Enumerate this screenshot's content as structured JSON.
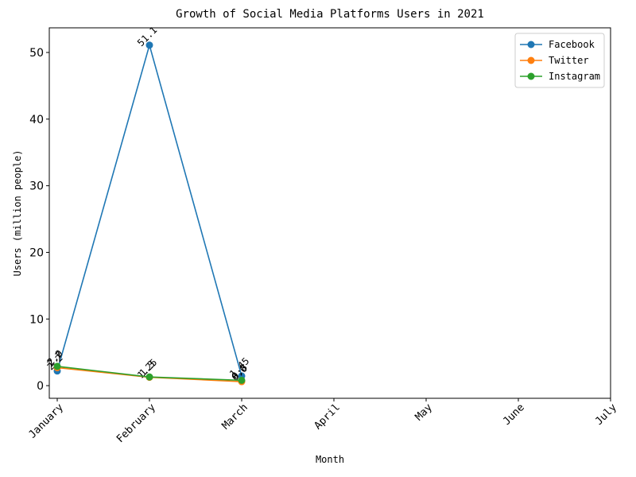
{
  "chart_data": {
    "type": "line",
    "title": "Growth of Social Media Platforms Users in 2021",
    "xlabel": "Month",
    "ylabel": "Users (million people)",
    "categories": [
      "January",
      "February",
      "March",
      "April",
      "May",
      "June",
      "July"
    ],
    "series": [
      {
        "name": "Facebook",
        "color": "#1f77b4",
        "values": [
          2.2,
          51.1,
          1.45,
          null,
          null,
          null,
          null
        ]
      },
      {
        "name": "Twitter",
        "color": "#ff7f0e",
        "values": [
          2.7,
          1.25,
          0.6,
          null,
          null,
          null,
          null
        ]
      },
      {
        "name": "Instagram",
        "color": "#2ca02c",
        "values": [
          2.9,
          1.3,
          0.8,
          null,
          null,
          null,
          null
        ]
      }
    ],
    "ylim": [
      -1.9,
      53.7
    ],
    "yticks": [
      0,
      10,
      20,
      30,
      40,
      50
    ],
    "legend": "upper right",
    "data_labels": true
  }
}
